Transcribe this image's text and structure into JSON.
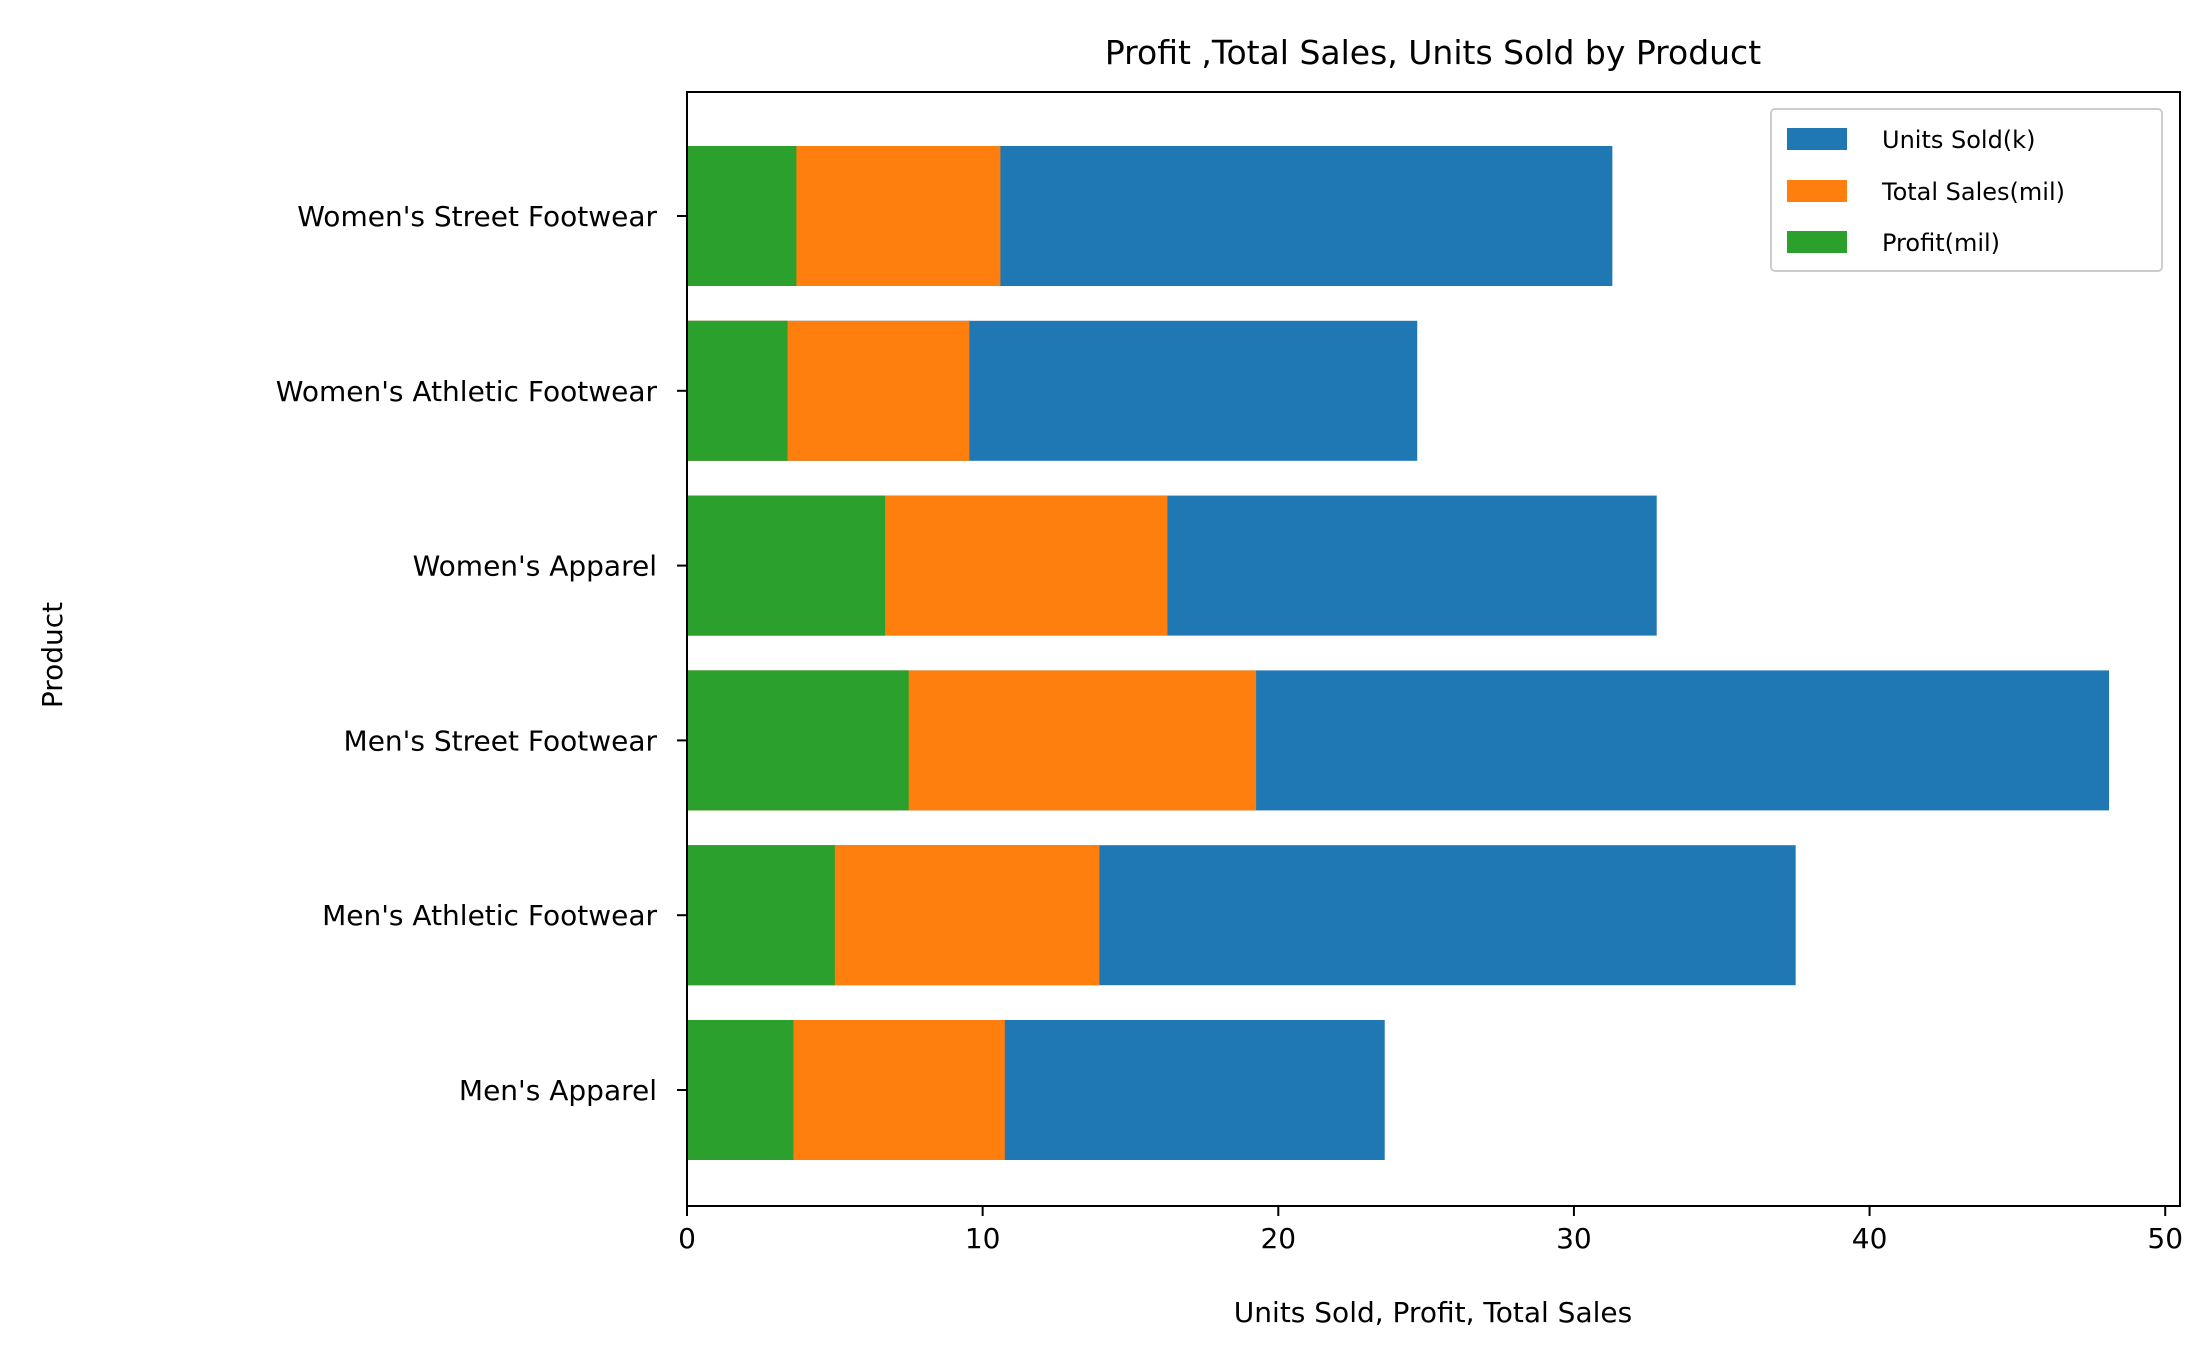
{
  "chart_data": {
    "type": "bar",
    "orientation": "horizontal",
    "stacking": "overlay",
    "title": "Profit ,Total Sales, Units Sold by Product",
    "xlabel": "Units Sold, Profit, Total Sales",
    "ylabel": "Product",
    "xlim": [
      0,
      50.5
    ],
    "x_ticks": [
      0,
      10,
      20,
      30,
      40,
      50
    ],
    "x_tick_labels": [
      "0",
      "10",
      "20",
      "30",
      "40",
      "50"
    ],
    "grid": false,
    "legend_position": "top-right",
    "categories": [
      "Men's Apparel",
      "Men's Athletic Footwear",
      "Men's Street Footwear",
      "Women's Apparel",
      "Women's Athletic Footwear",
      "Women's Street Footwear"
    ],
    "series": [
      {
        "name": "Units Sold(k)",
        "color": "#1f77b4",
        "values": [
          23.6,
          37.5,
          48.1,
          32.8,
          24.7,
          31.3
        ]
      },
      {
        "name": "Total Sales(mil)",
        "color": "#ff7f0e",
        "values": [
          10.75,
          13.95,
          19.25,
          16.25,
          9.55,
          10.6
        ]
      },
      {
        "name": "Profit(mil)",
        "color": "#2ca02c",
        "values": [
          3.6,
          5.0,
          7.5,
          6.7,
          3.4,
          3.7
        ]
      }
    ]
  }
}
